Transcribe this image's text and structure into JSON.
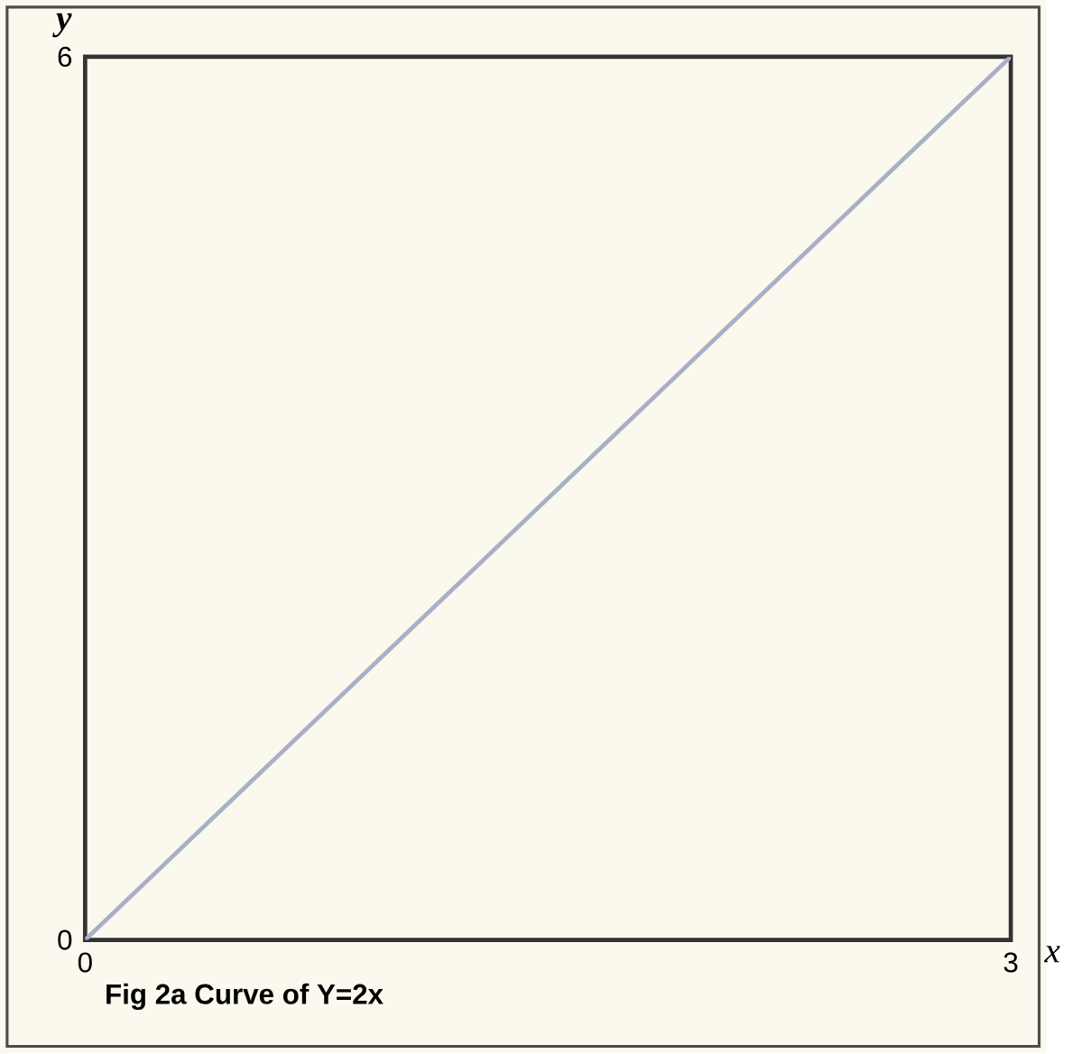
{
  "chart_data": {
    "type": "line",
    "xlabel": "x",
    "ylabel": "y",
    "annotations": [
      "Fig 2a Curve of Y=2x"
    ],
    "x": [
      0,
      3
    ],
    "series": [
      {
        "color": "#a8b0c8",
        "values": [
          0,
          6
        ]
      }
    ],
    "xlim": [
      0,
      3
    ],
    "ylim": [
      0,
      6
    ],
    "xticks": [
      0,
      3
    ],
    "yticks": [
      0,
      6
    ]
  }
}
